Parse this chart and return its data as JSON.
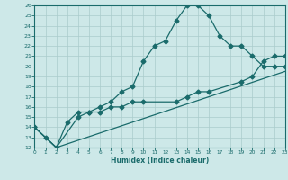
{
  "xlabel": "Humidex (Indice chaleur)",
  "background_color": "#cde8e8",
  "line_color": "#1a6b6b",
  "grid_color": "#aacccc",
  "xlim": [
    0,
    23
  ],
  "ylim": [
    12,
    26
  ],
  "xticks": [
    0,
    1,
    2,
    3,
    4,
    5,
    6,
    7,
    8,
    9,
    10,
    11,
    12,
    13,
    14,
    15,
    16,
    17,
    18,
    19,
    20,
    21,
    22,
    23
  ],
  "yticks": [
    12,
    13,
    14,
    15,
    16,
    17,
    18,
    19,
    20,
    21,
    22,
    23,
    24,
    25,
    26
  ],
  "series1_x": [
    0,
    1,
    2,
    3,
    4,
    5,
    6,
    7,
    8,
    9,
    10,
    11,
    12,
    13,
    14,
    15,
    16,
    17,
    18,
    19,
    20,
    21,
    22,
    23
  ],
  "series1_y": [
    14,
    13,
    12,
    14.5,
    15.5,
    15.5,
    16,
    16.5,
    17.5,
    18,
    20.5,
    22,
    22.5,
    24.5,
    26,
    26,
    25,
    23,
    22,
    22,
    21,
    20,
    20,
    20
  ],
  "series2_x": [
    0,
    2,
    4,
    5,
    6,
    7,
    8,
    9,
    10,
    13,
    14,
    15,
    16,
    19,
    20,
    21,
    22,
    23
  ],
  "series2_y": [
    14,
    12,
    15,
    15.5,
    15.5,
    16,
    16,
    16.5,
    16.5,
    16.5,
    17,
    17.5,
    17.5,
    18.5,
    19,
    20.5,
    21,
    21
  ],
  "series3_x": [
    0,
    2,
    23
  ],
  "series3_y": [
    14,
    12,
    19.5
  ],
  "marker": "D",
  "markersize": 2.5,
  "linewidth": 0.9
}
